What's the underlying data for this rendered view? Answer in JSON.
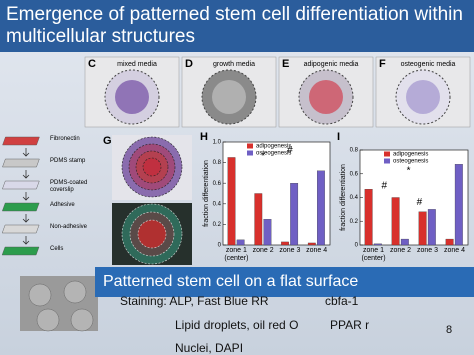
{
  "title": "Emergence of patterned stem cell differentiation within multicellular structures",
  "panels": [
    {
      "letter": "C",
      "caption": "mixed media"
    },
    {
      "letter": "D",
      "caption": "growth media"
    },
    {
      "letter": "E",
      "caption": "adipogenic media"
    },
    {
      "letter": "F",
      "caption": "osteogenic media"
    }
  ],
  "panel_g": "G",
  "diagram": {
    "labels": [
      "Fibronectin",
      "PDMS stamp",
      "PDMS-coated coverslip",
      "Adhesive",
      "Non-adhesive",
      "Cells"
    ]
  },
  "chart_data": [
    {
      "type": "bar",
      "label": "H",
      "y_label": "fraction differentiation",
      "categories": [
        "zone 1 (center)",
        "zone 2",
        "zone 3",
        "zone 4"
      ],
      "series": [
        {
          "name": "adipogenesis",
          "color": "#d8302c",
          "values": [
            0.85,
            0.5,
            0.03,
            0.02
          ]
        },
        {
          "name": "osteogenesis",
          "color": "#6f5fc4",
          "values": [
            0.05,
            0.25,
            0.6,
            0.72
          ]
        }
      ],
      "ylim": [
        0,
        1
      ],
      "yticks": [
        0,
        0.2,
        0.4,
        0.6,
        0.8,
        {
          "value": 1,
          "label": "1.0"
        }
      ],
      "annotations": [
        "*",
        "#"
      ]
    },
    {
      "type": "bar",
      "label": "I",
      "y_label": "fraction differentiation",
      "categories": [
        "zone 1 (center)",
        "zone 2",
        "zone 3",
        "zone 4"
      ],
      "series": [
        {
          "name": "adipogenesis",
          "color": "#d8302c",
          "values": [
            0.47,
            0.4,
            0.28,
            0.05
          ]
        },
        {
          "name": "osteogenesis",
          "color": "#6f5fc4",
          "values": [
            0.01,
            0.05,
            0.3,
            0.68
          ]
        }
      ],
      "ylim": [
        0,
        0.8
      ],
      "yticks": [
        0,
        0.2,
        0.4,
        0.6,
        0.8
      ],
      "annotations": [
        "*",
        "#",
        "#"
      ]
    }
  ],
  "banner": "Patterned stem cell on a flat surface",
  "notes": [
    [
      "Staining: ALP, Fast Blue RR",
      "cbfa-1"
    ],
    [
      "Lipid droplets, oil red O",
      "PPAR r"
    ],
    [
      "Nuclei, DAPI"
    ]
  ],
  "page_number": "8"
}
